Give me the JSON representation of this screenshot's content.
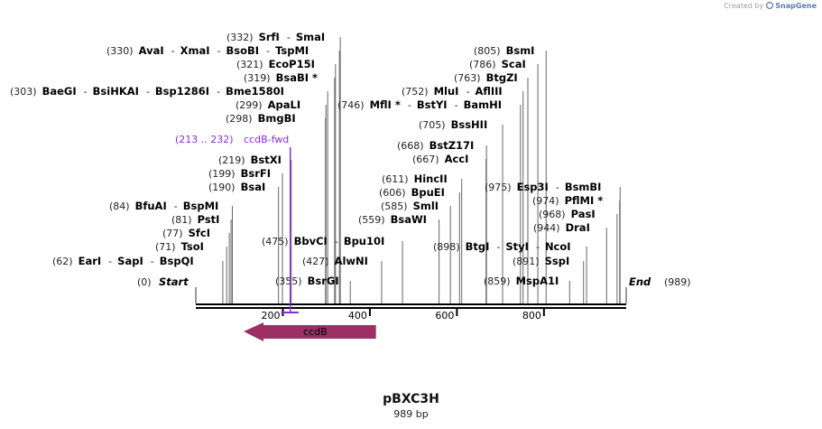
{
  "credit": {
    "prefix": "Created by",
    "brand": "SnapGene",
    "icon": "snapgene-logo-icon"
  },
  "map": {
    "name": "pBXC3H",
    "length_label": "989 bp",
    "length": 989,
    "start_label": "Start",
    "end_label": "End",
    "start_pos": "(0)",
    "end_pos": "(989)",
    "ticks": [
      {
        "value": 200,
        "label": "200"
      },
      {
        "value": 400,
        "label": "400"
      },
      {
        "value": 600,
        "label": "600"
      },
      {
        "value": 800,
        "label": "800"
      }
    ],
    "feature": {
      "name": "ccdB",
      "start": 110,
      "end": 414,
      "direction": "reverse",
      "color": "#9c2f64"
    },
    "primer": {
      "label": "ccdB-fwd",
      "pos": "(213 .. 232)",
      "start": 213,
      "end": 232,
      "color": "#8a2be2"
    },
    "sites": [
      {
        "pos": "(62)",
        "names": [
          "EarI",
          "SapI",
          "BspQI"
        ]
      },
      {
        "pos": "(71)",
        "names": [
          "TsoI"
        ]
      },
      {
        "pos": "(77)",
        "names": [
          "SfcI"
        ]
      },
      {
        "pos": "(81)",
        "names": [
          "PstI"
        ]
      },
      {
        "pos": "(84)",
        "names": [
          "BfuAI",
          "BspMI"
        ]
      },
      {
        "pos": "(190)",
        "names": [
          "BsaI"
        ]
      },
      {
        "pos": "(199)",
        "names": [
          "BsrFI"
        ]
      },
      {
        "pos": "(219)",
        "names": [
          "BstXI"
        ]
      },
      {
        "pos": "(298)",
        "names": [
          "BmgBI"
        ]
      },
      {
        "pos": "(299)",
        "names": [
          "ApaLI"
        ]
      },
      {
        "pos": "(303)",
        "names": [
          "BaeGI",
          "BsiHKAI",
          "Bsp1286I",
          "Bme1580I"
        ]
      },
      {
        "pos": "(319)",
        "names": [
          "BsaBI *"
        ]
      },
      {
        "pos": "(321)",
        "names": [
          "EcoP15I"
        ]
      },
      {
        "pos": "(330)",
        "names": [
          "AvaI",
          "XmaI",
          "BsoBI",
          "TspMI"
        ]
      },
      {
        "pos": "(332)",
        "names": [
          "SrfI",
          "SmaI"
        ]
      },
      {
        "pos": "(355)",
        "names": [
          "BsrGI"
        ]
      },
      {
        "pos": "(427)",
        "names": [
          "AlwNI"
        ]
      },
      {
        "pos": "(475)",
        "names": [
          "BbvCI",
          "Bpu10I"
        ]
      },
      {
        "pos": "(559)",
        "names": [
          "BsaWI"
        ]
      },
      {
        "pos": "(585)",
        "names": [
          "SmlI"
        ]
      },
      {
        "pos": "(606)",
        "names": [
          "BpuEI"
        ]
      },
      {
        "pos": "(611)",
        "names": [
          "HincII"
        ]
      },
      {
        "pos": "(667)",
        "names": [
          "AccI"
        ]
      },
      {
        "pos": "(668)",
        "names": [
          "BstZ17I"
        ]
      },
      {
        "pos": "(705)",
        "names": [
          "BssHII"
        ]
      },
      {
        "pos": "(746)",
        "names": [
          "MflI *",
          "BstYI",
          "BamHI"
        ]
      },
      {
        "pos": "(752)",
        "names": [
          "MluI",
          "AflIII"
        ]
      },
      {
        "pos": "(763)",
        "names": [
          "BtgZI"
        ]
      },
      {
        "pos": "(786)",
        "names": [
          "ScaI"
        ]
      },
      {
        "pos": "(805)",
        "names": [
          "BsmI"
        ]
      },
      {
        "pos": "(859)",
        "names": [
          "MspA1I"
        ]
      },
      {
        "pos": "(891)",
        "names": [
          "SspI"
        ]
      },
      {
        "pos": "(898)",
        "names": [
          "BtgI",
          "StyI",
          "NcoI"
        ]
      },
      {
        "pos": "(944)",
        "names": [
          "DraI"
        ]
      },
      {
        "pos": "(968)",
        "names": [
          "PasI"
        ]
      },
      {
        "pos": "(974)",
        "names": [
          "PflMI *"
        ]
      },
      {
        "pos": "(975)",
        "names": [
          "Esp3I",
          "BsmBI"
        ]
      }
    ]
  }
}
